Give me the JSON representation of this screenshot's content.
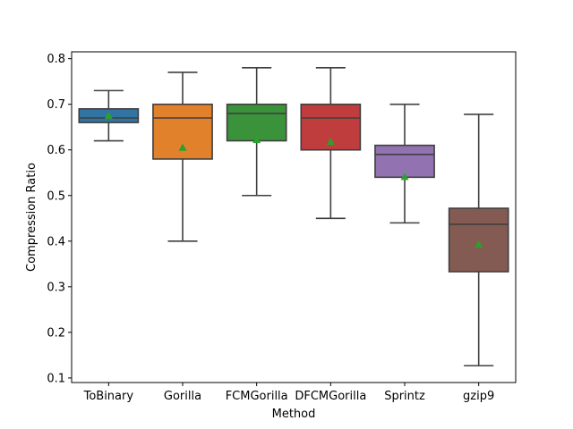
{
  "chart_data": {
    "type": "box",
    "title": "",
    "xlabel": "Method",
    "ylabel": "Compression Ratio",
    "ylim": [
      0.09,
      0.815
    ],
    "yticks": [
      0.1,
      0.2,
      0.3,
      0.4,
      0.5,
      0.6,
      0.7,
      0.8
    ],
    "ytick_labels": [
      "0.1",
      "0.2",
      "0.3",
      "0.4",
      "0.5",
      "0.6",
      "0.7",
      "0.8"
    ],
    "grid": false,
    "legend": "none",
    "mean_marker": {
      "shape": "triangle",
      "color": "#2ca02c"
    },
    "categories": [
      "ToBinary",
      "Gorilla",
      "FCMGorilla",
      "DFCMGorilla",
      "Sprintz",
      "gzip9"
    ],
    "boxes": [
      {
        "label": "ToBinary",
        "color": "#3274a1",
        "whisker_low": 0.62,
        "q1": 0.66,
        "median": 0.67,
        "q3": 0.69,
        "whisker_high": 0.73,
        "mean": 0.675
      },
      {
        "label": "Gorilla",
        "color": "#e1812c",
        "whisker_low": 0.4,
        "q1": 0.58,
        "median": 0.67,
        "q3": 0.7,
        "whisker_high": 0.77,
        "mean": 0.605
      },
      {
        "label": "FCMGorilla",
        "color": "#3a923a",
        "whisker_low": 0.5,
        "q1": 0.62,
        "median": 0.68,
        "q3": 0.7,
        "whisker_high": 0.78,
        "mean": 0.622
      },
      {
        "label": "DFCMGorilla",
        "color": "#c03d3e",
        "whisker_low": 0.45,
        "q1": 0.6,
        "median": 0.67,
        "q3": 0.7,
        "whisker_high": 0.78,
        "mean": 0.618
      },
      {
        "label": "Sprintz",
        "color": "#9372b2",
        "whisker_low": 0.44,
        "q1": 0.54,
        "median": 0.59,
        "q3": 0.61,
        "whisker_high": 0.7,
        "mean": 0.541
      },
      {
        "label": "gzip9",
        "color": "#845b53",
        "whisker_low": 0.127,
        "q1": 0.333,
        "median": 0.437,
        "q3": 0.472,
        "whisker_high": 0.678,
        "mean": 0.393
      }
    ]
  }
}
